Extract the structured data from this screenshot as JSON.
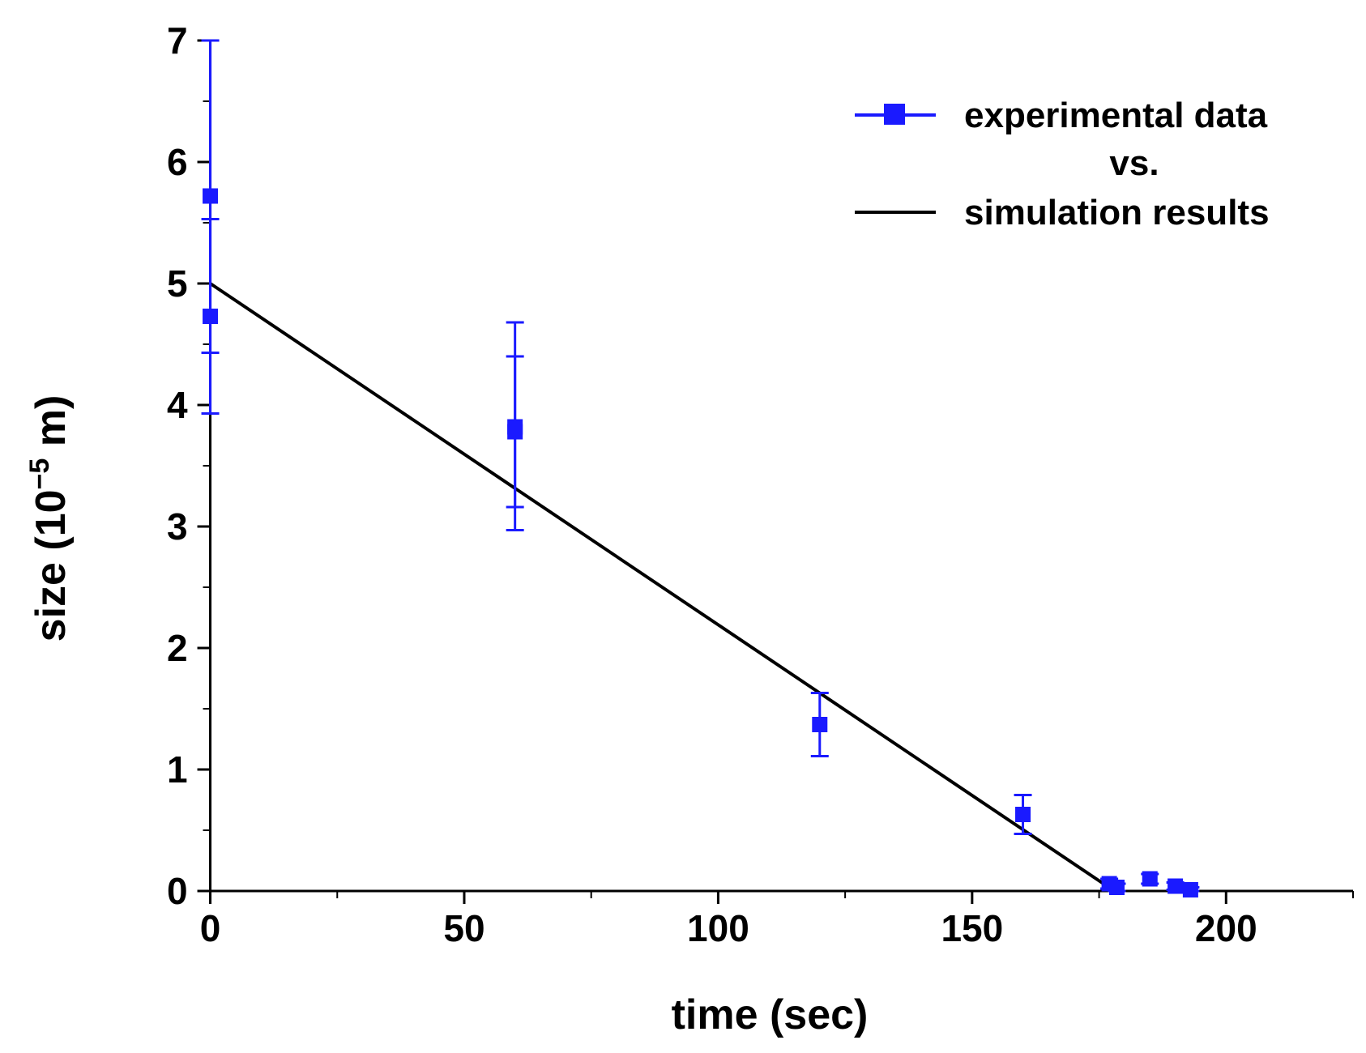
{
  "chart_data": {
    "type": "scatter",
    "title": "",
    "xlabel": "time (sec)",
    "ylabel_prefix": "size (10",
    "ylabel_exponent": "−5",
    "ylabel_suffix": " m)",
    "xlim": [
      -2,
      225
    ],
    "ylim": [
      0,
      7
    ],
    "x_ticks": [
      0,
      50,
      100,
      150,
      200
    ],
    "x_tick_labels": [
      "0",
      "50",
      "100",
      "150",
      "200"
    ],
    "x_minor_ticks": [
      25,
      75,
      125,
      175,
      225
    ],
    "y_ticks": [
      0,
      1,
      2,
      3,
      4,
      5,
      6,
      7
    ],
    "y_tick_labels": [
      "0",
      "1",
      "2",
      "3",
      "4",
      "5",
      "6",
      "7"
    ],
    "y_minor_ticks": [
      0.5,
      1.5,
      2.5,
      3.5,
      4.5,
      5.5,
      6.5
    ],
    "grid": false,
    "legend_position": "top-right",
    "legend": {
      "line1": "experimental data",
      "line2": "vs.",
      "line3": "simulation results"
    },
    "series": [
      {
        "name": "experimental data",
        "color": "#1a1aff",
        "marker": "square",
        "points": [
          {
            "x": 0,
            "y": 5.72,
            "err_low": 4.43,
            "err_high": 7.0
          },
          {
            "x": 0,
            "y": 4.73,
            "err_low": 3.93,
            "err_high": 5.53
          },
          {
            "x": 60,
            "y": 3.82,
            "err_low": 3.16,
            "err_high": 4.4
          },
          {
            "x": 60,
            "y": 3.78,
            "err_low": 2.97,
            "err_high": 4.68
          },
          {
            "x": 120,
            "y": 1.37,
            "err_low": 1.11,
            "err_high": 1.63
          },
          {
            "x": 160,
            "y": 0.63,
            "err_low": 0.47,
            "err_high": 0.79
          },
          {
            "x": 177,
            "y": 0.06,
            "err_low": 0.02,
            "err_high": 0.1
          },
          {
            "x": 178.5,
            "y": 0.03,
            "err_low": 0.0,
            "err_high": 0.06
          },
          {
            "x": 185,
            "y": 0.1,
            "err_low": 0.06,
            "err_high": 0.14
          },
          {
            "x": 190,
            "y": 0.04,
            "err_low": 0.01,
            "err_high": 0.07
          },
          {
            "x": 193,
            "y": 0.01,
            "err_low": 0.0,
            "err_high": 0.03
          }
        ]
      },
      {
        "name": "simulation results",
        "color": "#000000",
        "type": "line",
        "points": [
          {
            "x": 0,
            "y": 5.0
          },
          {
            "x": 178,
            "y": 0.0
          }
        ]
      }
    ]
  }
}
